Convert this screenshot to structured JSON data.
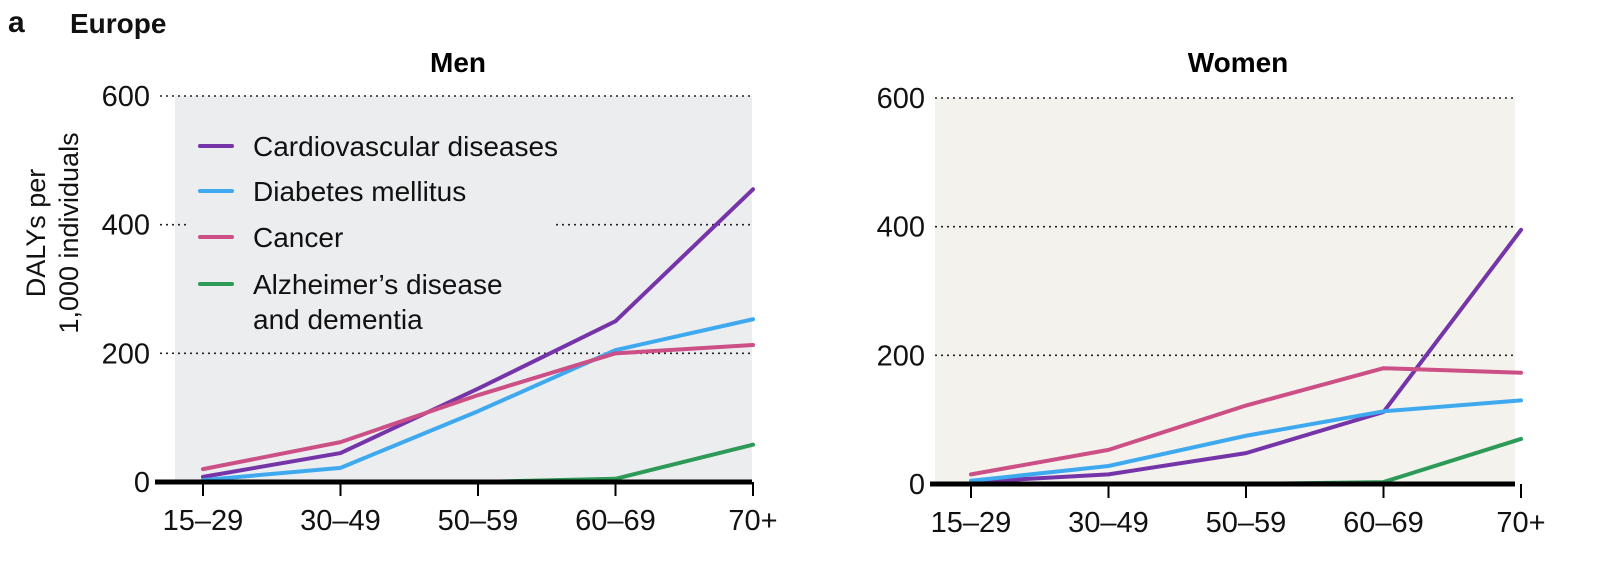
{
  "figure": {
    "panel_letter": "a",
    "region": "Europe",
    "ylabel_line1": "DALYs per",
    "ylabel_line2": "1,000 individuals"
  },
  "colors": {
    "Cardiovascular diseases": "#7535a8",
    "Diabetes mellitus": "#3fa9f0",
    "Cancer": "#cc4f86",
    "Alzheimer’s disease and dementia": "#2e9a57",
    "men_bg": "#ecedef",
    "women_bg": "#f3f2ec"
  },
  "chart_data": [
    {
      "type": "line",
      "title": "Men",
      "categories": [
        "15–29",
        "30–49",
        "50–59",
        "60–69",
        "70+"
      ],
      "ylim": [
        0,
        600
      ],
      "yticks": [
        0,
        200,
        400,
        600
      ],
      "grid": true,
      "legend": "top-left",
      "series": [
        {
          "name": "Cardiovascular diseases",
          "values": [
            8,
            45,
            145,
            250,
            455
          ]
        },
        {
          "name": "Diabetes mellitus",
          "values": [
            3,
            22,
            110,
            205,
            253
          ]
        },
        {
          "name": "Cancer",
          "values": [
            20,
            62,
            135,
            200,
            213
          ]
        },
        {
          "name": "Alzheimer’s disease and dementia",
          "values": [
            0,
            0,
            0,
            5,
            58
          ]
        }
      ]
    },
    {
      "type": "line",
      "title": "Women",
      "categories": [
        "15–29",
        "30–49",
        "50–59",
        "60–69",
        "70+"
      ],
      "ylim": [
        0,
        600
      ],
      "yticks": [
        0,
        200,
        400,
        600
      ],
      "grid": true,
      "series": [
        {
          "name": "Cardiovascular diseases",
          "values": [
            3,
            15,
            48,
            112,
            395
          ]
        },
        {
          "name": "Diabetes mellitus",
          "values": [
            5,
            28,
            75,
            113,
            130
          ]
        },
        {
          "name": "Cancer",
          "values": [
            15,
            53,
            122,
            180,
            173
          ]
        },
        {
          "name": "Alzheimer’s disease and dementia",
          "values": [
            0,
            0,
            0,
            3,
            70
          ]
        }
      ]
    }
  ]
}
